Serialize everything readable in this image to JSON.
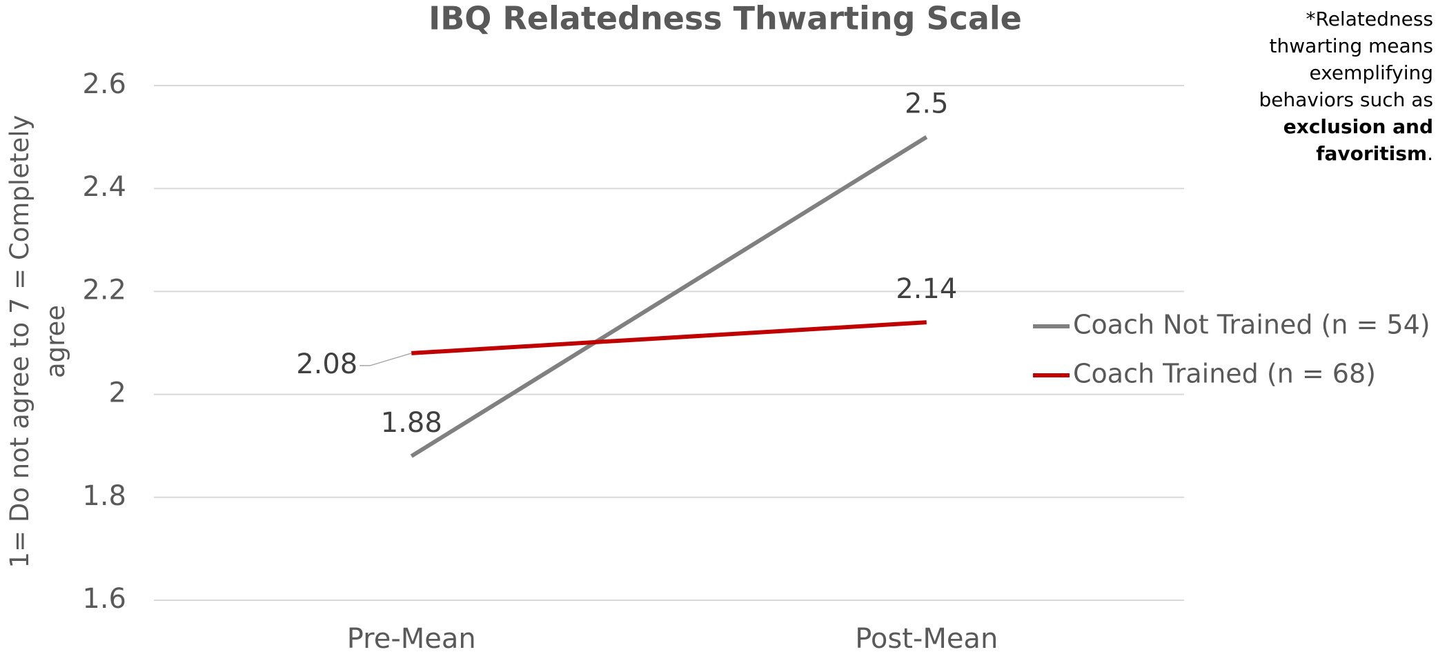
{
  "chart_data": {
    "type": "line",
    "title": "IBQ Relatedness Thwarting Scale",
    "y_label": "1= Do not agree to 7 = Completely agree",
    "categories": [
      "Pre-Mean",
      "Post-Mean"
    ],
    "series": [
      {
        "name": "Coach Not Trained (n = 54)",
        "color": "#808080",
        "values": [
          1.88,
          2.5
        ]
      },
      {
        "name": "Coach Trained (n = 68)",
        "color": "#c00000",
        "values": [
          2.08,
          2.14
        ]
      }
    ],
    "ylim": [
      1.6,
      2.6
    ],
    "yticks": [
      1.6,
      1.8,
      2,
      2.2,
      2.4,
      2.6
    ],
    "grid": true,
    "legend": "right",
    "note": {
      "text": "*Relatedness thwarting means exemplifying behaviors such as ",
      "bold": "exclusion and favoritism",
      "end": "."
    }
  }
}
